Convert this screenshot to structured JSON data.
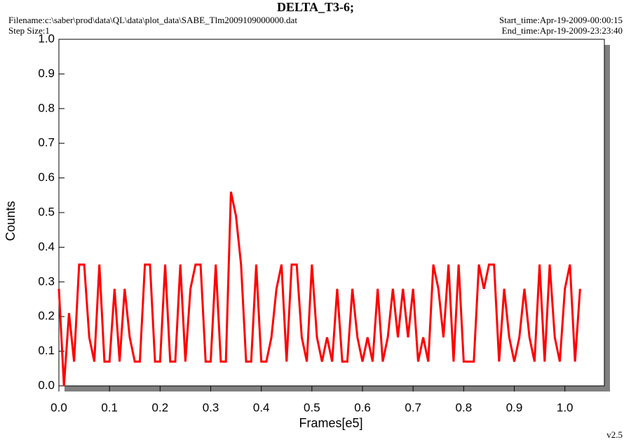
{
  "chart_data": {
    "type": "line",
    "title": "DELTA_T3-6;",
    "filename": "Filename:c:\\saber\\prod\\data\\QL\\data\\plot_data\\SABE_Tlm2009109000000.dat",
    "step_size": "Step Size:1",
    "start_time": "Start_time:Apr-19-2009-00:00:15",
    "end_time": "End_time:Apr-19-2009-23:23:40",
    "version": "v2.5",
    "x_label": "Frames[e5]",
    "y_label": "Counts",
    "xlim": [
      0,
      1.078
    ],
    "ylim": [
      0,
      1
    ],
    "xticks": [
      {
        "value": 0,
        "label": "0.0"
      },
      0.1,
      0.2,
      0.3,
      0.4,
      0.5,
      0.6,
      0.7,
      0.8,
      0.9,
      {
        "value": 1,
        "label": "1.0"
      }
    ],
    "yticks": [
      {
        "value": 0,
        "label": "0.0"
      },
      0.1,
      0.2,
      0.3,
      0.4,
      0.5,
      0.6,
      0.7,
      0.8,
      0.9,
      {
        "value": 1,
        "label": "1.0"
      }
    ],
    "x": [
      0,
      0.01,
      0.02,
      0.03,
      0.04,
      0.05,
      0.06,
      0.07,
      0.08,
      0.09,
      0.1,
      0.11,
      0.12,
      0.13,
      0.14,
      0.15,
      0.16,
      0.17,
      0.18,
      0.19,
      0.2,
      0.21,
      0.22,
      0.23,
      0.24,
      0.25,
      0.26,
      0.27,
      0.28,
      0.29,
      0.3,
      0.31,
      0.32,
      0.33,
      0.34,
      0.35,
      0.36,
      0.37,
      0.38,
      0.39,
      0.4,
      0.41,
      0.42,
      0.43,
      0.44,
      0.45,
      0.46,
      0.47,
      0.48,
      0.49,
      0.5,
      0.51,
      0.52,
      0.53,
      0.54,
      0.55,
      0.56,
      0.57,
      0.58,
      0.59,
      0.6,
      0.61,
      0.62,
      0.63,
      0.64,
      0.65,
      0.66,
      0.67,
      0.68,
      0.69,
      0.7,
      0.71,
      0.72,
      0.73,
      0.74,
      0.75,
      0.76,
      0.77,
      0.78,
      0.79,
      0.8,
      0.81,
      0.82,
      0.83,
      0.84,
      0.85,
      0.86,
      0.87,
      0.88,
      0.89,
      0.9,
      0.91,
      0.92,
      0.93,
      0.94,
      0.95,
      0.96,
      0.97,
      0.98,
      0.99,
      1,
      1.01,
      1.02,
      1.03
    ],
    "series": [
      {
        "color": "#ff0000",
        "values": [
          0.28,
          0,
          0.21,
          0.07,
          0.35,
          0.35,
          0.14,
          0.07,
          0.35,
          0.07,
          0.07,
          0.28,
          0.07,
          0.28,
          0.14,
          0.07,
          0.07,
          0.35,
          0.35,
          0.07,
          0.07,
          0.35,
          0.07,
          0.07,
          0.35,
          0.07,
          0.28,
          0.35,
          0.35,
          0.07,
          0.07,
          0.35,
          0.07,
          0.07,
          0.56,
          0.49,
          0.35,
          0.07,
          0.07,
          0.35,
          0.07,
          0.07,
          0.14,
          0.28,
          0.35,
          0.07,
          0.35,
          0.35,
          0.14,
          0.07,
          0.35,
          0.14,
          0.07,
          0.14,
          0.07,
          0.28,
          0.07,
          0.07,
          0.28,
          0.14,
          0.07,
          0.14,
          0.07,
          0.28,
          0.07,
          0.14,
          0.28,
          0.14,
          0.28,
          0.14,
          0.28,
          0.07,
          0.14,
          0.07,
          0.35,
          0.28,
          0.14,
          0.35,
          0.07,
          0.35,
          0.07,
          0.07,
          0.07,
          0.35,
          0.28,
          0.35,
          0.35,
          0.07,
          0.28,
          0.14,
          0.07,
          0.14,
          0.28,
          0.14,
          0.07,
          0.35,
          0.07,
          0.35,
          0.14,
          0.07,
          0.28,
          0.35,
          0.07,
          0.28
        ]
      }
    ]
  }
}
